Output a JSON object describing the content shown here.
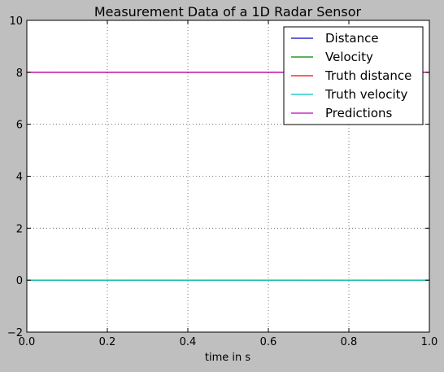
{
  "chart_data": {
    "type": "line",
    "title": "Measurement Data of a 1D Radar Sensor",
    "xlabel": "time in s",
    "ylabel": "",
    "xlim": [
      0.0,
      1.0
    ],
    "ylim": [
      -2,
      10
    ],
    "x_ticks": [
      "0.0",
      "0.2",
      "0.4",
      "0.6",
      "0.8",
      "1.0"
    ],
    "y_ticks": [
      "−2",
      "0",
      "2",
      "4",
      "6",
      "8",
      "10"
    ],
    "grid": true,
    "grid_style": "dotted",
    "legend_position": "top-right",
    "series": [
      {
        "name": "Distance",
        "color": "#0000bf",
        "x": [
          0.0,
          1.0
        ],
        "y": [
          8.0,
          8.0
        ]
      },
      {
        "name": "Velocity",
        "color": "#008000",
        "x": [
          0.0,
          1.0
        ],
        "y": [
          0.0,
          0.0
        ]
      },
      {
        "name": "Truth distance",
        "color": "#ff0000",
        "x": [
          0.0,
          1.0
        ],
        "y": [
          8.0,
          8.0
        ]
      },
      {
        "name": "Truth velocity",
        "color": "#00bfbf",
        "x": [
          0.0,
          1.0
        ],
        "y": [
          0.0,
          0.0
        ]
      },
      {
        "name": "Predictions",
        "color": "#bf00bf",
        "x": [
          0.0,
          1.0
        ],
        "y": [
          8.0,
          8.0
        ]
      }
    ]
  }
}
